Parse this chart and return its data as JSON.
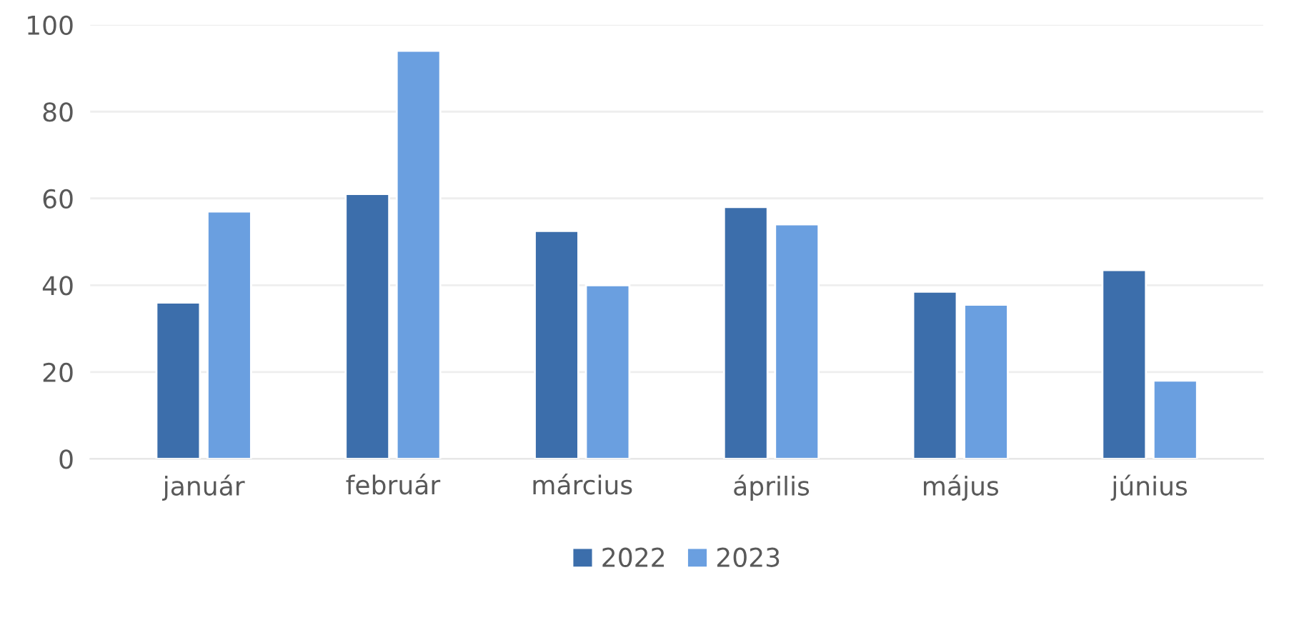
{
  "chart_data": {
    "type": "bar",
    "categories": [
      "január",
      "február",
      "március",
      "április",
      "május",
      "június"
    ],
    "series": [
      {
        "name": "2022",
        "color": "#3c6eab",
        "values": [
          36,
          61,
          52.5,
          58,
          38.5,
          43.5
        ]
      },
      {
        "name": "2023",
        "color": "#6a9fe0",
        "values": [
          57,
          94,
          40,
          54,
          35.5,
          18
        ]
      }
    ],
    "ylim": [
      0,
      100
    ],
    "yticks": [
      0,
      20,
      40,
      60,
      80,
      100
    ],
    "grid": "y",
    "legend": "bottom"
  }
}
